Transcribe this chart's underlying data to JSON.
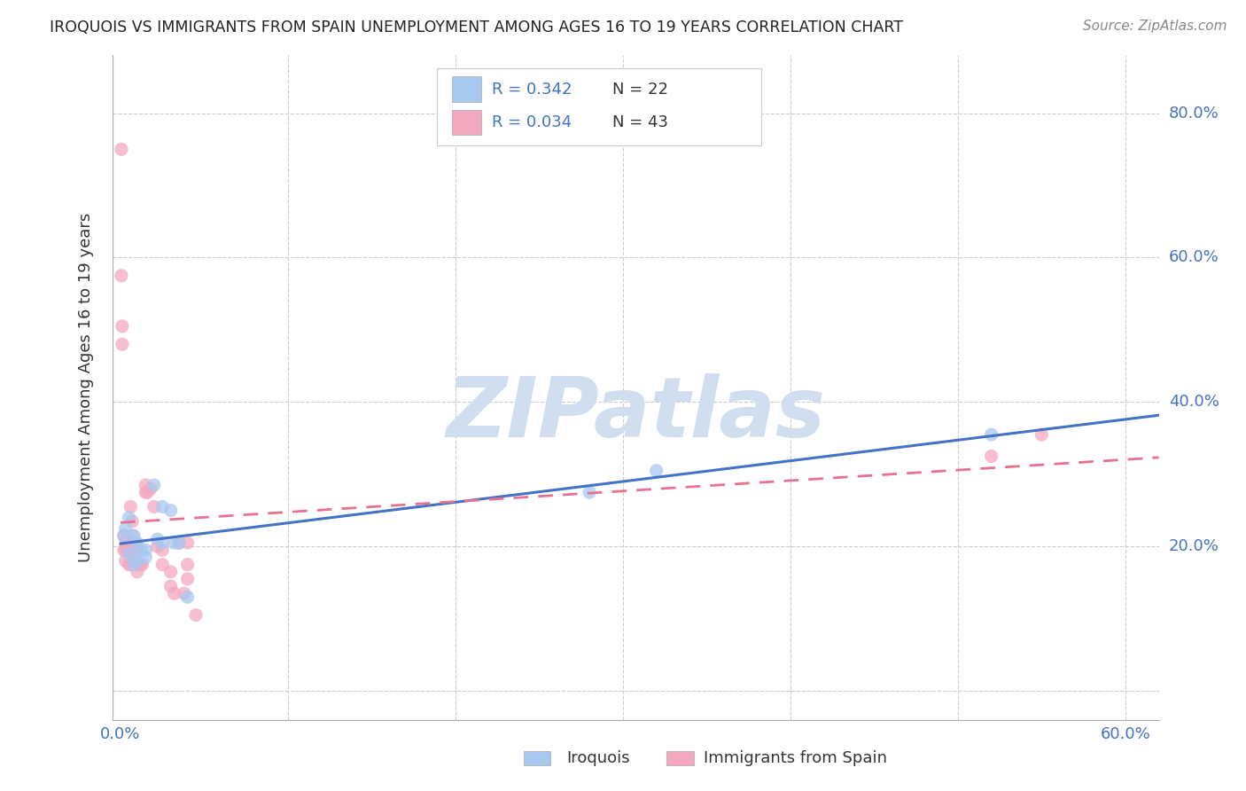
{
  "title": "IROQUOIS VS IMMIGRANTS FROM SPAIN UNEMPLOYMENT AMONG AGES 16 TO 19 YEARS CORRELATION CHART",
  "source": "Source: ZipAtlas.com",
  "ylabel": "Unemployment Among Ages 16 to 19 years",
  "legend_R1": "R = 0.342",
  "legend_N1": "N = 22",
  "legend_R2": "R = 0.034",
  "legend_N2": "N = 43",
  "legend_label1": "Iroquois",
  "legend_label2": "Immigrants from Spain",
  "blue_color": "#A8C8F0",
  "pink_color": "#F4A8C0",
  "blue_line_color": "#4472C4",
  "pink_line_color": "#E87090",
  "watermark_color": "#D0DEF0",
  "iroquois_x": [
    0.002,
    0.003,
    0.005,
    0.005,
    0.008,
    0.008,
    0.01,
    0.01,
    0.012,
    0.015,
    0.015,
    0.02,
    0.022,
    0.025,
    0.025,
    0.03,
    0.032,
    0.035,
    0.04,
    0.28,
    0.32,
    0.52
  ],
  "iroquois_y": [
    0.215,
    0.225,
    0.19,
    0.24,
    0.215,
    0.175,
    0.18,
    0.205,
    0.195,
    0.195,
    0.185,
    0.285,
    0.21,
    0.205,
    0.255,
    0.25,
    0.205,
    0.205,
    0.13,
    0.275,
    0.305,
    0.355
  ],
  "spain_x": [
    0.0005,
    0.0005,
    0.001,
    0.001,
    0.002,
    0.002,
    0.003,
    0.003,
    0.003,
    0.004,
    0.005,
    0.005,
    0.006,
    0.006,
    0.007,
    0.007,
    0.007,
    0.008,
    0.009,
    0.01,
    0.01,
    0.01,
    0.012,
    0.013,
    0.015,
    0.015,
    0.016,
    0.018,
    0.02,
    0.022,
    0.025,
    0.025,
    0.03,
    0.03,
    0.032,
    0.035,
    0.038,
    0.04,
    0.04,
    0.04,
    0.045,
    0.52,
    0.55
  ],
  "spain_y": [
    0.75,
    0.575,
    0.505,
    0.48,
    0.215,
    0.195,
    0.21,
    0.195,
    0.18,
    0.2,
    0.195,
    0.175,
    0.175,
    0.255,
    0.235,
    0.215,
    0.195,
    0.185,
    0.205,
    0.195,
    0.175,
    0.165,
    0.175,
    0.175,
    0.275,
    0.285,
    0.275,
    0.28,
    0.255,
    0.2,
    0.195,
    0.175,
    0.165,
    0.145,
    0.135,
    0.205,
    0.135,
    0.205,
    0.155,
    0.175,
    0.105,
    0.325,
    0.355
  ],
  "xlim": [
    -0.005,
    0.62
  ],
  "ylim": [
    -0.04,
    0.88
  ],
  "x_ticks": [
    0.0,
    0.1,
    0.2,
    0.3,
    0.4,
    0.5,
    0.6
  ],
  "y_ticks": [
    0.0,
    0.2,
    0.4,
    0.6,
    0.8
  ]
}
